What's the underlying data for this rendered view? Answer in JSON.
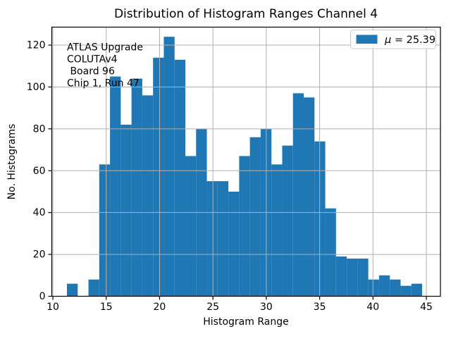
{
  "figure": {
    "background": "#ffffff"
  },
  "chart_data": {
    "type": "bar",
    "subtype": "histogram",
    "title": "Distribution of Histogram Ranges Channel 4",
    "xlabel": "Histogram Range",
    "ylabel": "No. Histograms",
    "bar_color": "#1f77b4",
    "grid": true,
    "grid_color": "#b0b0b0",
    "spine_color": "#000000",
    "xlim": [
      9.9,
      46.32
    ],
    "ylim": [
      0,
      128.6
    ],
    "xticks": [
      10,
      15,
      20,
      25,
      30,
      35,
      40,
      45
    ],
    "yticks": [
      0,
      20,
      40,
      60,
      80,
      100,
      120
    ],
    "bin_start": 11.32,
    "bin_width": 1.0086,
    "values": [
      6,
      0,
      8,
      63,
      105,
      82,
      104,
      96,
      114,
      124,
      113,
      67,
      80,
      55,
      55,
      50,
      67,
      76,
      80,
      63,
      72,
      97,
      95,
      74,
      42,
      19,
      18,
      18,
      8,
      10,
      8,
      5,
      6
    ],
    "legend": {
      "label": "μ = 25.39",
      "position": "upper right"
    },
    "annotation_lines": [
      "ATLAS Upgrade",
      "COLUTAv4",
      " Board 96",
      "Chip 1, Run 47"
    ]
  },
  "legend_display": {
    "symbol": "μ",
    "rest": " = 25.39"
  }
}
